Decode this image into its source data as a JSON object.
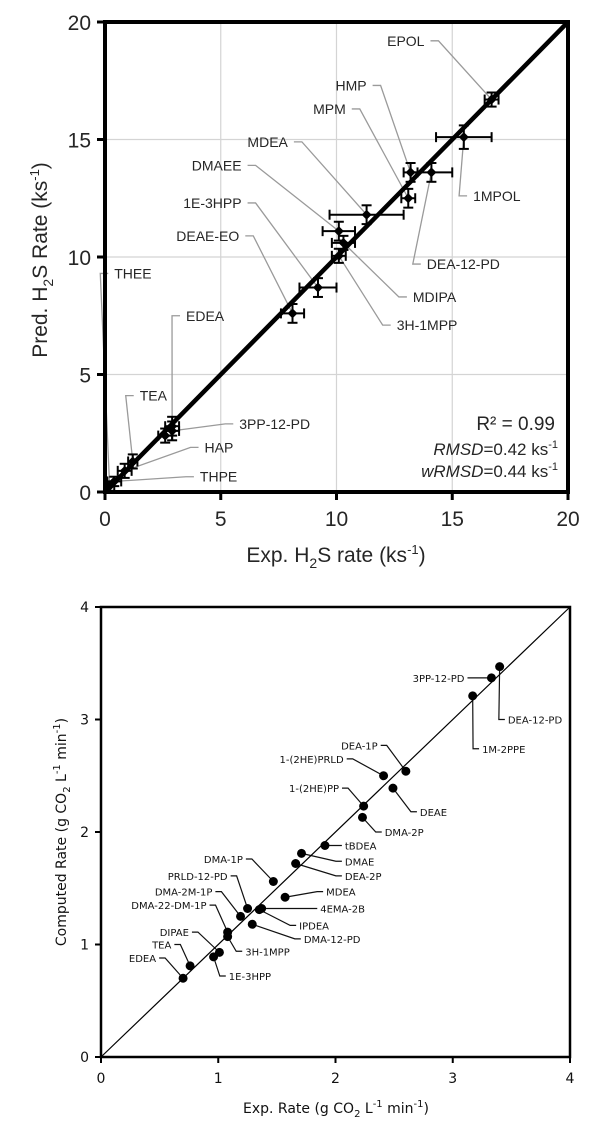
{
  "chart_data": [
    {
      "type": "scatter",
      "title": "",
      "xlabel": "Exp. H2S rate (ks-1)",
      "ylabel": "Pred. H2S Rate (ks-1)",
      "xlim": [
        0,
        20
      ],
      "ylim": [
        0,
        20
      ],
      "xticks": [
        0,
        5,
        10,
        15,
        20
      ],
      "yticks": [
        0,
        5,
        10,
        15,
        20
      ],
      "grid": true,
      "parity_line": true,
      "error_bars": true,
      "annotation": {
        "r2": "R² = 0.99",
        "rmsd_label": "RMSD",
        "rmsd_value": "=0.42 ks",
        "wrmsd_label": "wRMSD",
        "wrmsd_value": "=0.44 ks",
        "unit_sup": "-1"
      },
      "points": [
        {
          "label": "EPOL",
          "x": 16.7,
          "y": 16.7,
          "xerr": 0.3,
          "yerr": 0.3,
          "lx": 13.8,
          "ly": 19.2,
          "anchor": "end"
        },
        {
          "label": "HMP",
          "x": 13.2,
          "y": 13.6,
          "xerr": 0.3,
          "yerr": 0.4,
          "lx": 11.3,
          "ly": 17.3,
          "anchor": "end"
        },
        {
          "label": "MPM",
          "x": 13.1,
          "y": 12.5,
          "xerr": 0.3,
          "yerr": 0.4,
          "lx": 10.4,
          "ly": 16.3,
          "anchor": "end"
        },
        {
          "label": "MDEA",
          "x": 11.3,
          "y": 11.8,
          "xerr": 1.6,
          "yerr": 0.4,
          "lx": 7.9,
          "ly": 14.9,
          "anchor": "end"
        },
        {
          "label": "DMAEE",
          "x": 10.1,
          "y": 11.1,
          "xerr": 0.7,
          "yerr": 0.4,
          "lx": 5.9,
          "ly": 13.9,
          "anchor": "end"
        },
        {
          "label": "1E-3HPP",
          "x": 9.2,
          "y": 8.7,
          "xerr": 0.8,
          "yerr": 0.4,
          "lx": 5.9,
          "ly": 12.3,
          "anchor": "end"
        },
        {
          "label": "DEAE-EO",
          "x": 8.1,
          "y": 7.6,
          "xerr": 0.5,
          "yerr": 0.4,
          "lx": 5.8,
          "ly": 10.9,
          "anchor": "end"
        },
        {
          "label": "1MPOL",
          "x": 15.5,
          "y": 15.1,
          "xerr": 1.2,
          "yerr": 0.5,
          "lx": 15.9,
          "ly": 12.6,
          "anchor": "start"
        },
        {
          "label": "DEA-12-PD",
          "x": 14.1,
          "y": 13.6,
          "xerr": 0.9,
          "yerr": 0.4,
          "lx": 13.9,
          "ly": 9.7,
          "anchor": "start"
        },
        {
          "label": "MDIPA",
          "x": 10.3,
          "y": 10.6,
          "xerr": 0.5,
          "yerr": 0.3,
          "lx": 13.3,
          "ly": 8.3,
          "anchor": "start"
        },
        {
          "label": "3H-1MPP",
          "x": 10.1,
          "y": 10.05,
          "xerr": 0.3,
          "yerr": 0.3,
          "lx": 12.6,
          "ly": 7.1,
          "anchor": "start"
        },
        {
          "label": "THEE",
          "x": 0.2,
          "y": 0.25,
          "xerr": 0.2,
          "yerr": 0.2,
          "lx": 0.4,
          "ly": 9.3,
          "anchor": "start"
        },
        {
          "label": "EDEA",
          "x": 2.9,
          "y": 2.8,
          "xerr": 0.3,
          "yerr": 0.4,
          "lx": 3.5,
          "ly": 7.5,
          "anchor": "start"
        },
        {
          "label": "TEA",
          "x": 1.2,
          "y": 1.3,
          "xerr": 0.2,
          "yerr": 0.3,
          "lx": 1.5,
          "ly": 4.1,
          "anchor": "start"
        },
        {
          "label": "3PP-12-PD",
          "x": 2.9,
          "y": 2.6,
          "xerr": 0.3,
          "yerr": 0.4,
          "lx": 5.8,
          "ly": 2.9,
          "anchor": "start"
        },
        {
          "label": "HAP",
          "x": 0.85,
          "y": 0.9,
          "xerr": 0.3,
          "yerr": 0.3,
          "lx": 4.3,
          "ly": 1.9,
          "anchor": "start"
        },
        {
          "label": "THPE",
          "x": 0.4,
          "y": 0.45,
          "xerr": 0.3,
          "yerr": 0.2,
          "lx": 4.1,
          "ly": 0.65,
          "anchor": "start"
        },
        {
          "label": "",
          "x": 2.6,
          "y": 2.4,
          "xerr": 0.3,
          "yerr": 0.3
        }
      ]
    },
    {
      "type": "scatter",
      "title": "",
      "xlabel": "Exp. Rate (g CO2 L-1 min-1)",
      "ylabel": "Computed Rate (g CO2 L-1 min-1)",
      "xlim": [
        0,
        4
      ],
      "ylim": [
        0,
        4
      ],
      "xticks": [
        0,
        1,
        2,
        3,
        4
      ],
      "yticks": [
        0,
        1,
        2,
        3,
        4
      ],
      "grid": false,
      "parity_line": true,
      "points": [
        {
          "label": "DEA-12-PD",
          "x": 3.4,
          "y": 3.47,
          "lx": 3.47,
          "ly": 3.0,
          "anchor": "start"
        },
        {
          "label": "3PP-12-PD",
          "x": 3.33,
          "y": 3.37,
          "lx": 3.1,
          "ly": 3.37,
          "anchor": "end"
        },
        {
          "label": "1M-2PPE",
          "x": 3.17,
          "y": 3.21,
          "lx": 3.25,
          "ly": 2.74,
          "anchor": "start"
        },
        {
          "label": "DEA-1P",
          "x": 2.6,
          "y": 2.54,
          "lx": 2.36,
          "ly": 2.77,
          "anchor": "end"
        },
        {
          "label": "1-(2HE)PRLD",
          "x": 2.41,
          "y": 2.5,
          "lx": 2.07,
          "ly": 2.65,
          "anchor": "end"
        },
        {
          "label": "DEAE",
          "x": 2.49,
          "y": 2.39,
          "lx": 2.72,
          "ly": 2.18,
          "anchor": "start"
        },
        {
          "label": "1-(2HE)PP",
          "x": 2.24,
          "y": 2.23,
          "lx": 2.03,
          "ly": 2.39,
          "anchor": "end"
        },
        {
          "label": "DMA-2P",
          "x": 2.23,
          "y": 2.13,
          "lx": 2.42,
          "ly": 2.0,
          "anchor": "start"
        },
        {
          "label": "tBDEA",
          "x": 1.91,
          "y": 1.88,
          "lx": 2.08,
          "ly": 1.88,
          "anchor": "start"
        },
        {
          "label": "DMAE",
          "x": 1.71,
          "y": 1.81,
          "lx": 2.08,
          "ly": 1.74,
          "anchor": "start"
        },
        {
          "label": "DEA-2P",
          "x": 1.66,
          "y": 1.72,
          "lx": 2.08,
          "ly": 1.61,
          "anchor": "start"
        },
        {
          "label": "DMA-1P",
          "x": 1.47,
          "y": 1.56,
          "lx": 1.21,
          "ly": 1.76,
          "anchor": "end"
        },
        {
          "label": "PRLD-12-PD",
          "x": 1.25,
          "y": 1.32,
          "lx": 1.08,
          "ly": 1.61,
          "anchor": "end"
        },
        {
          "label": "MDEA",
          "x": 1.57,
          "y": 1.42,
          "lx": 1.92,
          "ly": 1.47,
          "anchor": "start"
        },
        {
          "label": "DMA-2M-1P",
          "x": 1.19,
          "y": 1.25,
          "lx": 0.95,
          "ly": 1.47,
          "anchor": "end"
        },
        {
          "label": "4EMA-2B",
          "x": 1.37,
          "y": 1.32,
          "lx": 1.87,
          "ly": 1.32,
          "anchor": "start"
        },
        {
          "label": "DMA-22-DM-1P",
          "x": 1.08,
          "y": 1.11,
          "lx": 0.9,
          "ly": 1.35,
          "anchor": "end"
        },
        {
          "label": "IPDEA",
          "x": 1.35,
          "y": 1.31,
          "lx": 1.69,
          "ly": 1.17,
          "anchor": "start"
        },
        {
          "label": "DMA-12-PD",
          "x": 1.29,
          "y": 1.18,
          "lx": 1.73,
          "ly": 1.05,
          "anchor": "start"
        },
        {
          "label": "DIPAE",
          "x": 1.01,
          "y": 0.93,
          "lx": 0.75,
          "ly": 1.11,
          "anchor": "end"
        },
        {
          "label": "3H-1MPP",
          "x": 1.08,
          "y": 1.07,
          "lx": 1.23,
          "ly": 0.94,
          "anchor": "start"
        },
        {
          "label": "TEA",
          "x": 0.76,
          "y": 0.81,
          "lx": 0.6,
          "ly": 1.0,
          "anchor": "end"
        },
        {
          "label": "EDEA",
          "x": 0.7,
          "y": 0.7,
          "lx": 0.47,
          "ly": 0.88,
          "anchor": "end"
        },
        {
          "label": "1E-3HPP",
          "x": 0.96,
          "y": 0.89,
          "lx": 1.09,
          "ly": 0.72,
          "anchor": "start"
        }
      ]
    }
  ],
  "top_chart": {
    "ylabel_main": "Pred. H",
    "ylabel_sub": "2",
    "ylabel_rest": "S Rate  (ks",
    "ylabel_sup": "-1",
    "ylabel_end": ")",
    "xlabel_main": "Exp. H",
    "xlabel_sub": "2",
    "xlabel_rest": "S rate (ks",
    "xlabel_sup": "-1",
    "xlabel_end": ")"
  },
  "bottom_chart": {
    "ylabel_main": "Computed Rate (g CO",
    "ylabel_sub": "2",
    "ylabel_mid": " L",
    "ylabel_sup1": "-1",
    "ylabel_mid2": " min",
    "ylabel_sup2": "-1",
    "ylabel_end": ")",
    "xlabel_main": "Exp. Rate (g CO",
    "xlabel_sub": "2",
    "xlabel_mid": " L",
    "xlabel_sup1": "-1",
    "xlabel_mid2": " min",
    "xlabel_sup2": "-1",
    "xlabel_end": ")"
  },
  "colors": {
    "axis": "#000000",
    "grid": "#d4d4d4",
    "leader_top": "#9a9a9a",
    "leader_bottom": "#111111",
    "text": "#262626"
  }
}
